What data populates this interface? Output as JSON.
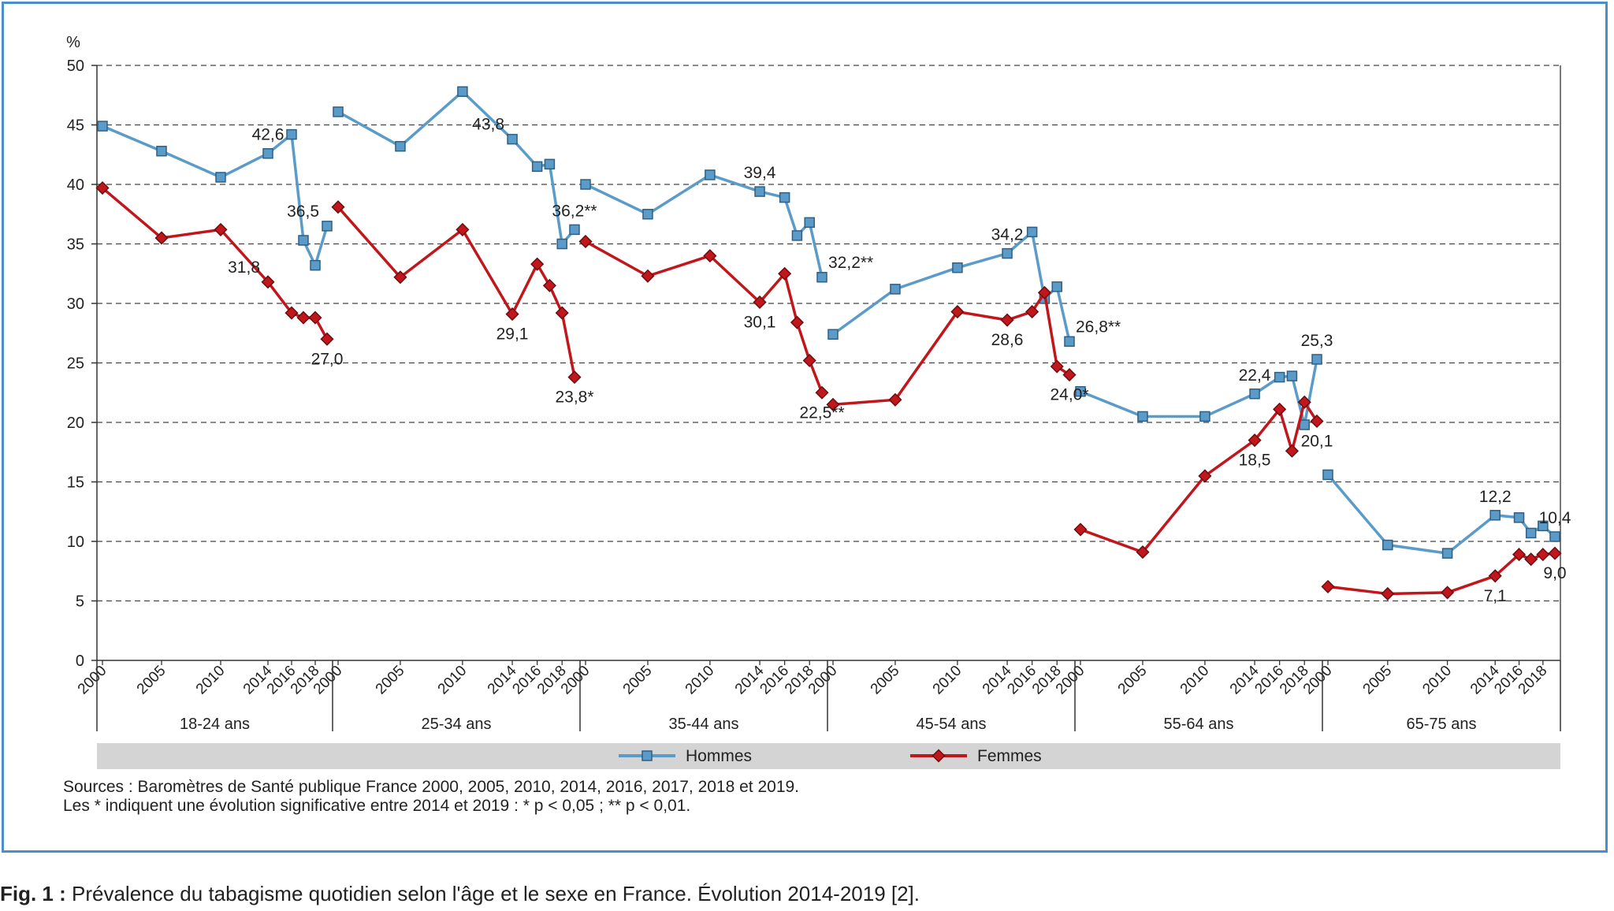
{
  "chart_data": {
    "type": "line",
    "ylabel": "%",
    "ylim": [
      0,
      50
    ],
    "yticks": [
      0,
      5,
      10,
      15,
      20,
      25,
      30,
      35,
      40,
      45,
      50
    ],
    "grid": "horizontal-dashed",
    "legend_position": "bottom",
    "colors": {
      "Hommes": "#5b9bc8",
      "Femmes": "#c0161c",
      "marker_stroke_h": "#2e5f86",
      "marker_stroke_f": "#6b0e10"
    },
    "x_tick_labels": [
      "2000",
      "2005",
      "2010",
      "2014",
      "2016",
      "2018"
    ],
    "groups": [
      {
        "label": "18-24 ans",
        "x": [
          2000,
          2005,
          2010,
          2014,
          2016,
          2017,
          2018,
          2019
        ],
        "series": [
          {
            "name": "Hommes",
            "values": [
              44.9,
              42.8,
              40.6,
              42.6,
              44.2,
              35.3,
              33.2,
              36.5
            ]
          },
          {
            "name": "Femmes",
            "values": [
              39.7,
              35.5,
              36.2,
              31.8,
              29.2,
              28.8,
              28.8,
              27.0
            ]
          }
        ]
      },
      {
        "label": "25-34 ans",
        "x": [
          2000,
          2005,
          2010,
          2014,
          2016,
          2017,
          2018,
          2019
        ],
        "series": [
          {
            "name": "Hommes",
            "values": [
              46.1,
              43.2,
              47.8,
              43.8,
              41.5,
              41.7,
              35.0,
              36.2
            ]
          },
          {
            "name": "Femmes",
            "values": [
              38.1,
              32.2,
              36.2,
              29.1,
              33.3,
              31.5,
              29.2,
              23.8
            ]
          }
        ]
      },
      {
        "label": "35-44 ans",
        "x": [
          2000,
          2005,
          2010,
          2014,
          2016,
          2017,
          2018,
          2019
        ],
        "series": [
          {
            "name": "Hommes",
            "values": [
              40.0,
              37.5,
              40.8,
              39.4,
              38.9,
              35.7,
              36.8,
              32.2
            ]
          },
          {
            "name": "Femmes",
            "values": [
              35.2,
              32.3,
              34.0,
              30.1,
              32.5,
              28.4,
              25.2,
              22.5
            ]
          }
        ]
      },
      {
        "label": "45-54 ans",
        "x": [
          2000,
          2005,
          2010,
          2014,
          2016,
          2017,
          2018,
          2019
        ],
        "series": [
          {
            "name": "Hommes",
            "values": [
              27.4,
              31.2,
              33.0,
              34.2,
              36.0,
              30.4,
              31.4,
              26.8
            ]
          },
          {
            "name": "Femmes",
            "values": [
              21.5,
              21.9,
              29.3,
              28.6,
              29.3,
              30.9,
              24.7,
              24.0
            ]
          }
        ]
      },
      {
        "label": "55-64 ans",
        "x": [
          2000,
          2005,
          2010,
          2014,
          2016,
          2017,
          2018,
          2019
        ],
        "series": [
          {
            "name": "Hommes",
            "values": [
              22.6,
              20.5,
              20.5,
              22.4,
              23.8,
              23.9,
              19.8,
              25.3
            ]
          },
          {
            "name": "Femmes",
            "values": [
              11.0,
              9.1,
              15.5,
              18.5,
              21.1,
              17.6,
              21.7,
              20.1
            ]
          }
        ]
      },
      {
        "label": "65-75 ans",
        "x": [
          2000,
          2005,
          2010,
          2014,
          2016,
          2017,
          2018,
          2019
        ],
        "series": [
          {
            "name": "Hommes",
            "values": [
              15.6,
              9.7,
              9.0,
              12.2,
              12.0,
              10.7,
              11.3,
              10.4
            ]
          },
          {
            "name": "Femmes",
            "values": [
              6.2,
              5.6,
              5.7,
              7.1,
              8.9,
              8.5,
              8.9,
              9.0
            ]
          }
        ]
      }
    ],
    "annotations": [
      {
        "group": 0,
        "series": "Hommes",
        "point": 3,
        "text": "42,6",
        "pos": "above"
      },
      {
        "group": 0,
        "series": "Hommes",
        "point": 7,
        "text": "36,5",
        "pos": "left"
      },
      {
        "group": 0,
        "series": "Femmes",
        "point": 3,
        "text": "31,8",
        "pos": "left"
      },
      {
        "group": 0,
        "series": "Femmes",
        "point": 7,
        "text": "27,0",
        "pos": "below"
      },
      {
        "group": 1,
        "series": "Hommes",
        "point": 3,
        "text": "43,8",
        "pos": "left"
      },
      {
        "group": 1,
        "series": "Hommes",
        "point": 7,
        "text": "36,2**",
        "pos": "above"
      },
      {
        "group": 1,
        "series": "Femmes",
        "point": 3,
        "text": "29,1",
        "pos": "below"
      },
      {
        "group": 1,
        "series": "Femmes",
        "point": 7,
        "text": "23,8*",
        "pos": "below"
      },
      {
        "group": 2,
        "series": "Hommes",
        "point": 3,
        "text": "39,4",
        "pos": "above"
      },
      {
        "group": 2,
        "series": "Hommes",
        "point": 7,
        "text": "32,2**",
        "pos": "above-right"
      },
      {
        "group": 2,
        "series": "Femmes",
        "point": 3,
        "text": "30,1",
        "pos": "below"
      },
      {
        "group": 2,
        "series": "Femmes",
        "point": 7,
        "text": "22,5**",
        "pos": "below"
      },
      {
        "group": 3,
        "series": "Hommes",
        "point": 3,
        "text": "34,2",
        "pos": "above"
      },
      {
        "group": 3,
        "series": "Hommes",
        "point": 7,
        "text": "26,8**",
        "pos": "above-right"
      },
      {
        "group": 3,
        "series": "Femmes",
        "point": 3,
        "text": "28,6",
        "pos": "below"
      },
      {
        "group": 3,
        "series": "Femmes",
        "point": 7,
        "text": "24,0*",
        "pos": "below"
      },
      {
        "group": 4,
        "series": "Hommes",
        "point": 3,
        "text": "22,4",
        "pos": "above"
      },
      {
        "group": 4,
        "series": "Hommes",
        "point": 7,
        "text": "25,3",
        "pos": "above"
      },
      {
        "group": 4,
        "series": "Femmes",
        "point": 3,
        "text": "18,5",
        "pos": "below"
      },
      {
        "group": 4,
        "series": "Femmes",
        "point": 7,
        "text": "20,1",
        "pos": "below"
      },
      {
        "group": 5,
        "series": "Hommes",
        "point": 3,
        "text": "12,2",
        "pos": "above"
      },
      {
        "group": 5,
        "series": "Hommes",
        "point": 7,
        "text": "10,4",
        "pos": "above"
      },
      {
        "group": 5,
        "series": "Femmes",
        "point": 3,
        "text": "7,1",
        "pos": "below"
      },
      {
        "group": 5,
        "series": "Femmes",
        "point": 7,
        "text": "9,0",
        "pos": "below"
      }
    ],
    "legend": [
      "Hommes",
      "Femmes"
    ]
  },
  "sources": "Sources : Baromètres de Santé publique France 2000, 2005, 2010, 2014, 2016, 2017, 2018 et 2019.",
  "note": "Les * indiquent une évolution significative entre 2014 et 2019 : * p < 0,05 ; ** p < 0,01.",
  "caption": {
    "label": "Fig. 1 :",
    "text": " Prévalence du tabagisme quotidien selon l'âge et le sexe en France. Évolution 2014-2019 [2]."
  }
}
